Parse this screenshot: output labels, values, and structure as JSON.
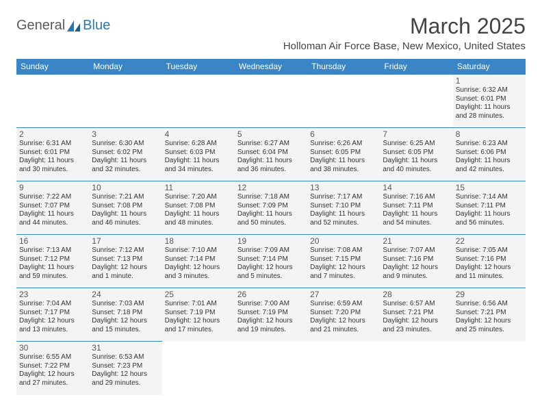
{
  "logo": {
    "text_general": "General",
    "text_blue": "Blue"
  },
  "title": "March 2025",
  "location": "Holloman Air Force Base, New Mexico, United States",
  "colors": {
    "header_bg": "#3a85c6",
    "header_fg": "#ffffff",
    "cell_bg": "#f3f4f4",
    "border": "#3a85c6",
    "logo_blue": "#2a77b8",
    "text": "#333333"
  },
  "typography": {
    "title_fontsize": 32,
    "location_fontsize": 15,
    "dayheader_fontsize": 12,
    "daynum_fontsize": 12,
    "info_fontsize": 10
  },
  "day_headers": [
    "Sunday",
    "Monday",
    "Tuesday",
    "Wednesday",
    "Thursday",
    "Friday",
    "Saturday"
  ],
  "weeks": [
    [
      null,
      null,
      null,
      null,
      null,
      null,
      {
        "n": "1",
        "sr": "Sunrise: 6:32 AM",
        "ss": "Sunset: 6:01 PM",
        "dl": "Daylight: 11 hours and 28 minutes."
      }
    ],
    [
      {
        "n": "2",
        "sr": "Sunrise: 6:31 AM",
        "ss": "Sunset: 6:01 PM",
        "dl": "Daylight: 11 hours and 30 minutes."
      },
      {
        "n": "3",
        "sr": "Sunrise: 6:30 AM",
        "ss": "Sunset: 6:02 PM",
        "dl": "Daylight: 11 hours and 32 minutes."
      },
      {
        "n": "4",
        "sr": "Sunrise: 6:28 AM",
        "ss": "Sunset: 6:03 PM",
        "dl": "Daylight: 11 hours and 34 minutes."
      },
      {
        "n": "5",
        "sr": "Sunrise: 6:27 AM",
        "ss": "Sunset: 6:04 PM",
        "dl": "Daylight: 11 hours and 36 minutes."
      },
      {
        "n": "6",
        "sr": "Sunrise: 6:26 AM",
        "ss": "Sunset: 6:05 PM",
        "dl": "Daylight: 11 hours and 38 minutes."
      },
      {
        "n": "7",
        "sr": "Sunrise: 6:25 AM",
        "ss": "Sunset: 6:05 PM",
        "dl": "Daylight: 11 hours and 40 minutes."
      },
      {
        "n": "8",
        "sr": "Sunrise: 6:23 AM",
        "ss": "Sunset: 6:06 PM",
        "dl": "Daylight: 11 hours and 42 minutes."
      }
    ],
    [
      {
        "n": "9",
        "sr": "Sunrise: 7:22 AM",
        "ss": "Sunset: 7:07 PM",
        "dl": "Daylight: 11 hours and 44 minutes."
      },
      {
        "n": "10",
        "sr": "Sunrise: 7:21 AM",
        "ss": "Sunset: 7:08 PM",
        "dl": "Daylight: 11 hours and 46 minutes."
      },
      {
        "n": "11",
        "sr": "Sunrise: 7:20 AM",
        "ss": "Sunset: 7:08 PM",
        "dl": "Daylight: 11 hours and 48 minutes."
      },
      {
        "n": "12",
        "sr": "Sunrise: 7:18 AM",
        "ss": "Sunset: 7:09 PM",
        "dl": "Daylight: 11 hours and 50 minutes."
      },
      {
        "n": "13",
        "sr": "Sunrise: 7:17 AM",
        "ss": "Sunset: 7:10 PM",
        "dl": "Daylight: 11 hours and 52 minutes."
      },
      {
        "n": "14",
        "sr": "Sunrise: 7:16 AM",
        "ss": "Sunset: 7:11 PM",
        "dl": "Daylight: 11 hours and 54 minutes."
      },
      {
        "n": "15",
        "sr": "Sunrise: 7:14 AM",
        "ss": "Sunset: 7:11 PM",
        "dl": "Daylight: 11 hours and 56 minutes."
      }
    ],
    [
      {
        "n": "16",
        "sr": "Sunrise: 7:13 AM",
        "ss": "Sunset: 7:12 PM",
        "dl": "Daylight: 11 hours and 59 minutes."
      },
      {
        "n": "17",
        "sr": "Sunrise: 7:12 AM",
        "ss": "Sunset: 7:13 PM",
        "dl": "Daylight: 12 hours and 1 minute."
      },
      {
        "n": "18",
        "sr": "Sunrise: 7:10 AM",
        "ss": "Sunset: 7:14 PM",
        "dl": "Daylight: 12 hours and 3 minutes."
      },
      {
        "n": "19",
        "sr": "Sunrise: 7:09 AM",
        "ss": "Sunset: 7:14 PM",
        "dl": "Daylight: 12 hours and 5 minutes."
      },
      {
        "n": "20",
        "sr": "Sunrise: 7:08 AM",
        "ss": "Sunset: 7:15 PM",
        "dl": "Daylight: 12 hours and 7 minutes."
      },
      {
        "n": "21",
        "sr": "Sunrise: 7:07 AM",
        "ss": "Sunset: 7:16 PM",
        "dl": "Daylight: 12 hours and 9 minutes."
      },
      {
        "n": "22",
        "sr": "Sunrise: 7:05 AM",
        "ss": "Sunset: 7:16 PM",
        "dl": "Daylight: 12 hours and 11 minutes."
      }
    ],
    [
      {
        "n": "23",
        "sr": "Sunrise: 7:04 AM",
        "ss": "Sunset: 7:17 PM",
        "dl": "Daylight: 12 hours and 13 minutes."
      },
      {
        "n": "24",
        "sr": "Sunrise: 7:03 AM",
        "ss": "Sunset: 7:18 PM",
        "dl": "Daylight: 12 hours and 15 minutes."
      },
      {
        "n": "25",
        "sr": "Sunrise: 7:01 AM",
        "ss": "Sunset: 7:19 PM",
        "dl": "Daylight: 12 hours and 17 minutes."
      },
      {
        "n": "26",
        "sr": "Sunrise: 7:00 AM",
        "ss": "Sunset: 7:19 PM",
        "dl": "Daylight: 12 hours and 19 minutes."
      },
      {
        "n": "27",
        "sr": "Sunrise: 6:59 AM",
        "ss": "Sunset: 7:20 PM",
        "dl": "Daylight: 12 hours and 21 minutes."
      },
      {
        "n": "28",
        "sr": "Sunrise: 6:57 AM",
        "ss": "Sunset: 7:21 PM",
        "dl": "Daylight: 12 hours and 23 minutes."
      },
      {
        "n": "29",
        "sr": "Sunrise: 6:56 AM",
        "ss": "Sunset: 7:21 PM",
        "dl": "Daylight: 12 hours and 25 minutes."
      }
    ],
    [
      {
        "n": "30",
        "sr": "Sunrise: 6:55 AM",
        "ss": "Sunset: 7:22 PM",
        "dl": "Daylight: 12 hours and 27 minutes."
      },
      {
        "n": "31",
        "sr": "Sunrise: 6:53 AM",
        "ss": "Sunset: 7:23 PM",
        "dl": "Daylight: 12 hours and 29 minutes."
      },
      null,
      null,
      null,
      null,
      null
    ]
  ]
}
